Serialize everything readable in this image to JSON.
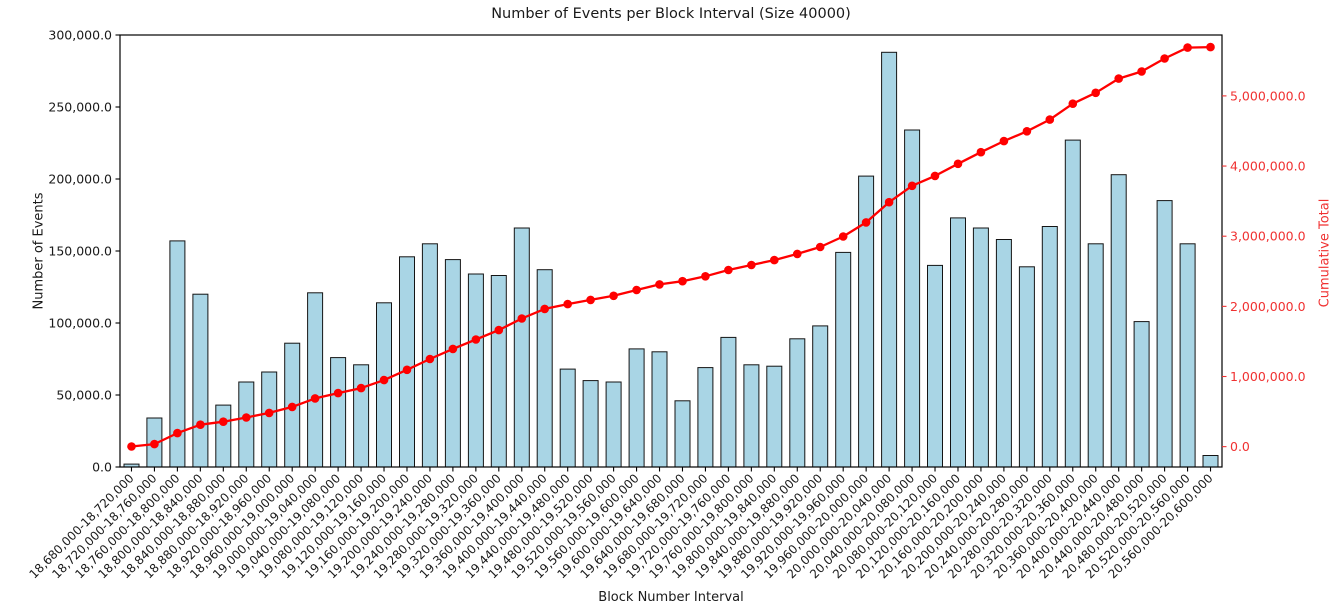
{
  "chart_data": {
    "type": "bar",
    "combo": "bar-with-cumulative-line",
    "title": "Number of Events per Block Interval (Size 40000)",
    "xlabel": "Block Number Interval",
    "ylabel_left": "Number of Events",
    "ylabel_right": "Cumulative Total",
    "grid": false,
    "legend": "none",
    "background": "#FFFFFF",
    "categories": [
      "18,680,000-18,720,000",
      "18,720,000-18,760,000",
      "18,760,000-18,800,000",
      "18,800,000-18,840,000",
      "18,840,000-18,880,000",
      "18,880,000-18,920,000",
      "18,920,000-18,960,000",
      "18,960,000-19,000,000",
      "19,000,000-19,040,000",
      "19,040,000-19,080,000",
      "19,080,000-19,120,000",
      "19,120,000-19,160,000",
      "19,160,000-19,200,000",
      "19,200,000-19,240,000",
      "19,240,000-19,280,000",
      "19,280,000-19,320,000",
      "19,320,000-19,360,000",
      "19,360,000-19,400,000",
      "19,400,000-19,440,000",
      "19,440,000-19,480,000",
      "19,480,000-19,520,000",
      "19,520,000-19,560,000",
      "19,560,000-19,600,000",
      "19,600,000-19,640,000",
      "19,640,000-19,680,000",
      "19,680,000-19,720,000",
      "19,720,000-19,760,000",
      "19,760,000-19,800,000",
      "19,800,000-19,840,000",
      "19,840,000-19,880,000",
      "19,880,000-19,920,000",
      "19,920,000-19,960,000",
      "19,960,000-20,000,000",
      "20,000,000-20,040,000",
      "20,040,000-20,080,000",
      "20,080,000-20,120,000",
      "20,120,000-20,160,000",
      "20,160,000-20,200,000",
      "20,200,000-20,240,000",
      "20,240,000-20,280,000",
      "20,280,000-20,320,000",
      "20,320,000-20,360,000",
      "20,360,000-20,400,000",
      "20,400,000-20,440,000",
      "20,440,000-20,480,000",
      "20,480,000-20,520,000",
      "20,520,000-20,560,000",
      "20,560,000-20,600,000"
    ],
    "series": [
      {
        "name": "Number of Events",
        "type": "bar",
        "axis": "left",
        "color": "#A9D5E5",
        "edge_color": "#141414",
        "values": [
          2000,
          34000,
          157000,
          120000,
          43000,
          59000,
          66000,
          86000,
          121000,
          76000,
          71000,
          114000,
          146000,
          155000,
          144000,
          134000,
          133000,
          166000,
          137000,
          68000,
          60000,
          59000,
          82000,
          80000,
          46000,
          69000,
          90000,
          71000,
          70000,
          89000,
          98000,
          149000,
          202000,
          288000,
          234000,
          140000,
          173000,
          166000,
          158000,
          139000,
          167000,
          227000,
          155000,
          203000,
          101000,
          185000,
          155000,
          8000
        ]
      },
      {
        "name": "Cumulative Total",
        "type": "line",
        "axis": "right",
        "color": "#FF0000",
        "marker": "circle",
        "values": [
          2000,
          36000,
          193000,
          313000,
          356000,
          415000,
          481000,
          567000,
          688000,
          764000,
          835000,
          949000,
          1095000,
          1250000,
          1394000,
          1528000,
          1661000,
          1827000,
          1964000,
          2032000,
          2092000,
          2151000,
          2233000,
          2313000,
          2359000,
          2428000,
          2518000,
          2589000,
          2659000,
          2748000,
          2846000,
          2995000,
          3197000,
          3485000,
          3719000,
          3859000,
          4032000,
          4198000,
          4356000,
          4495000,
          4662000,
          4889000,
          5044000,
          5247000,
          5348000,
          5533000,
          5688000,
          5696000
        ]
      }
    ],
    "left_axis": {
      "range": [
        0,
        300000
      ],
      "ticks": [
        0,
        50000,
        100000,
        150000,
        200000,
        250000,
        300000
      ],
      "tick_labels": [
        "0.0",
        "50,000.0",
        "100,000.0",
        "150,000.0",
        "200,000.0",
        "250,000.0",
        "300,000.0"
      ],
      "color": "#000000"
    },
    "right_axis": {
      "range": [
        -290000,
        5868000
      ],
      "ticks": [
        0,
        1000000,
        2000000,
        3000000,
        4000000,
        5000000
      ],
      "tick_labels": [
        "0.0",
        "1,000,000.0",
        "2,000,000.0",
        "3,000,000.0",
        "4,000,000.0",
        "5,000,000.0"
      ],
      "color": "#F03131"
    }
  }
}
